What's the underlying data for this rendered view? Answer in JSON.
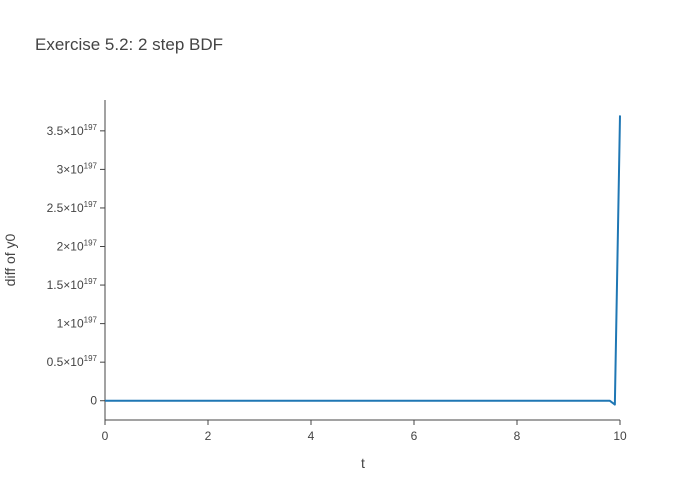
{
  "chart_data": {
    "type": "line",
    "title": "Exercise 5.2: 2 step BDF",
    "xlabel": "t",
    "ylabel": "diff of y0",
    "xlim": [
      0,
      10
    ],
    "ylim": [
      -2.5e+196,
      3.9e+197
    ],
    "x_ticks": [
      0,
      2,
      4,
      6,
      8,
      10
    ],
    "x_tick_labels": [
      "0",
      "2",
      "4",
      "6",
      "8",
      "10"
    ],
    "y_ticks": [
      {
        "value": 0,
        "base": "0",
        "exp": ""
      },
      {
        "value": 5e+196,
        "base": "0.5×10",
        "exp": "197"
      },
      {
        "value": 1e+197,
        "base": "1×10",
        "exp": "197"
      },
      {
        "value": 1.5e+197,
        "base": "1.5×10",
        "exp": "197"
      },
      {
        "value": 2e+197,
        "base": "2×10",
        "exp": "197"
      },
      {
        "value": 2.5e+197,
        "base": "2.5×10",
        "exp": "197"
      },
      {
        "value": 3e+197,
        "base": "3×10",
        "exp": "197"
      },
      {
        "value": 3.5e+197,
        "base": "3.5×10",
        "exp": "197"
      }
    ],
    "grid": false,
    "series": [
      {
        "color": "#1f77b4",
        "x": [
          0,
          1,
          2,
          3,
          4,
          5,
          6,
          7,
          8,
          9,
          9.8,
          9.9,
          10
        ],
        "y": [
          0,
          0,
          0,
          0,
          0,
          0,
          0,
          0,
          0,
          0,
          0,
          -5e+195,
          3.7e+197
        ]
      }
    ]
  }
}
